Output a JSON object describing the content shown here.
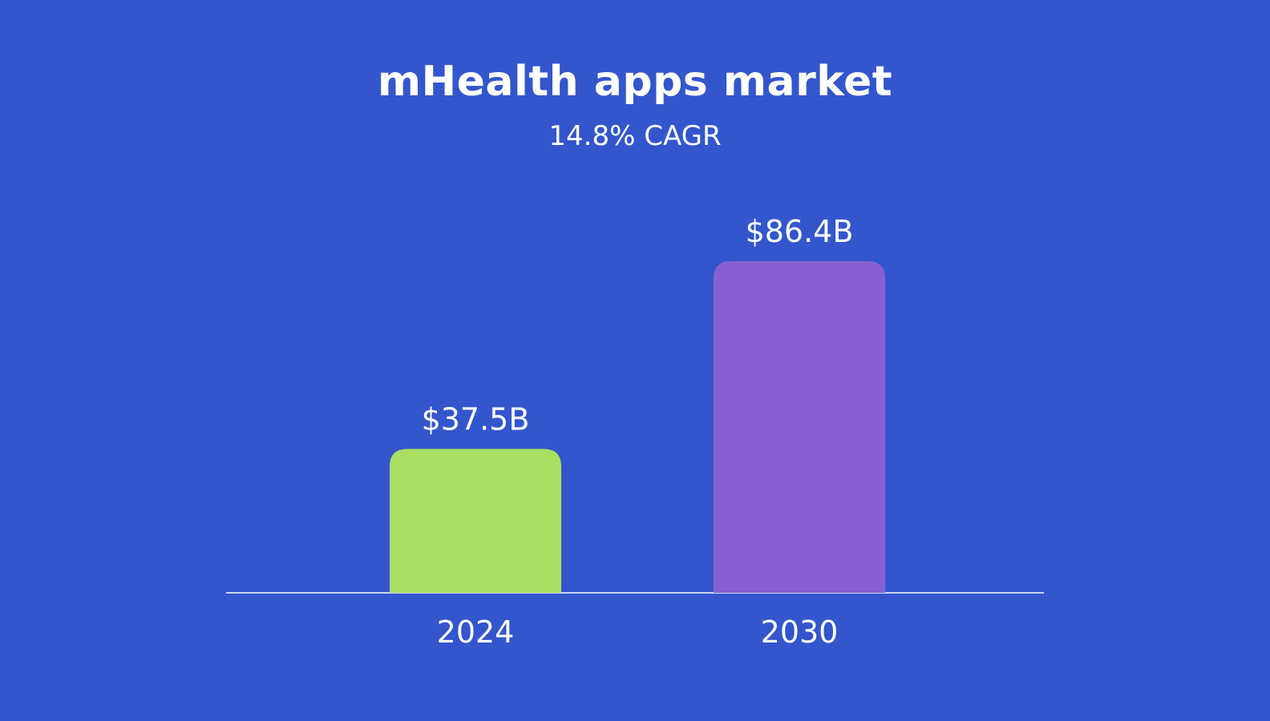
{
  "chart_data": {
    "type": "bar",
    "title": "mHealth apps market",
    "subtitle": "14.8% CAGR",
    "categories": [
      "2024",
      "2030"
    ],
    "values": [
      37.5,
      86.4
    ],
    "value_labels": [
      "$37.5B",
      "$86.4B"
    ],
    "colors": [
      "#a9df62",
      "#8761d3"
    ],
    "xlabel": "",
    "ylabel": "",
    "ylim": [
      0,
      100
    ],
    "grid": false,
    "legend": "none"
  },
  "colors": {
    "background": "#3356cd",
    "text": "#ffffff",
    "baseline": "#ffffff"
  }
}
